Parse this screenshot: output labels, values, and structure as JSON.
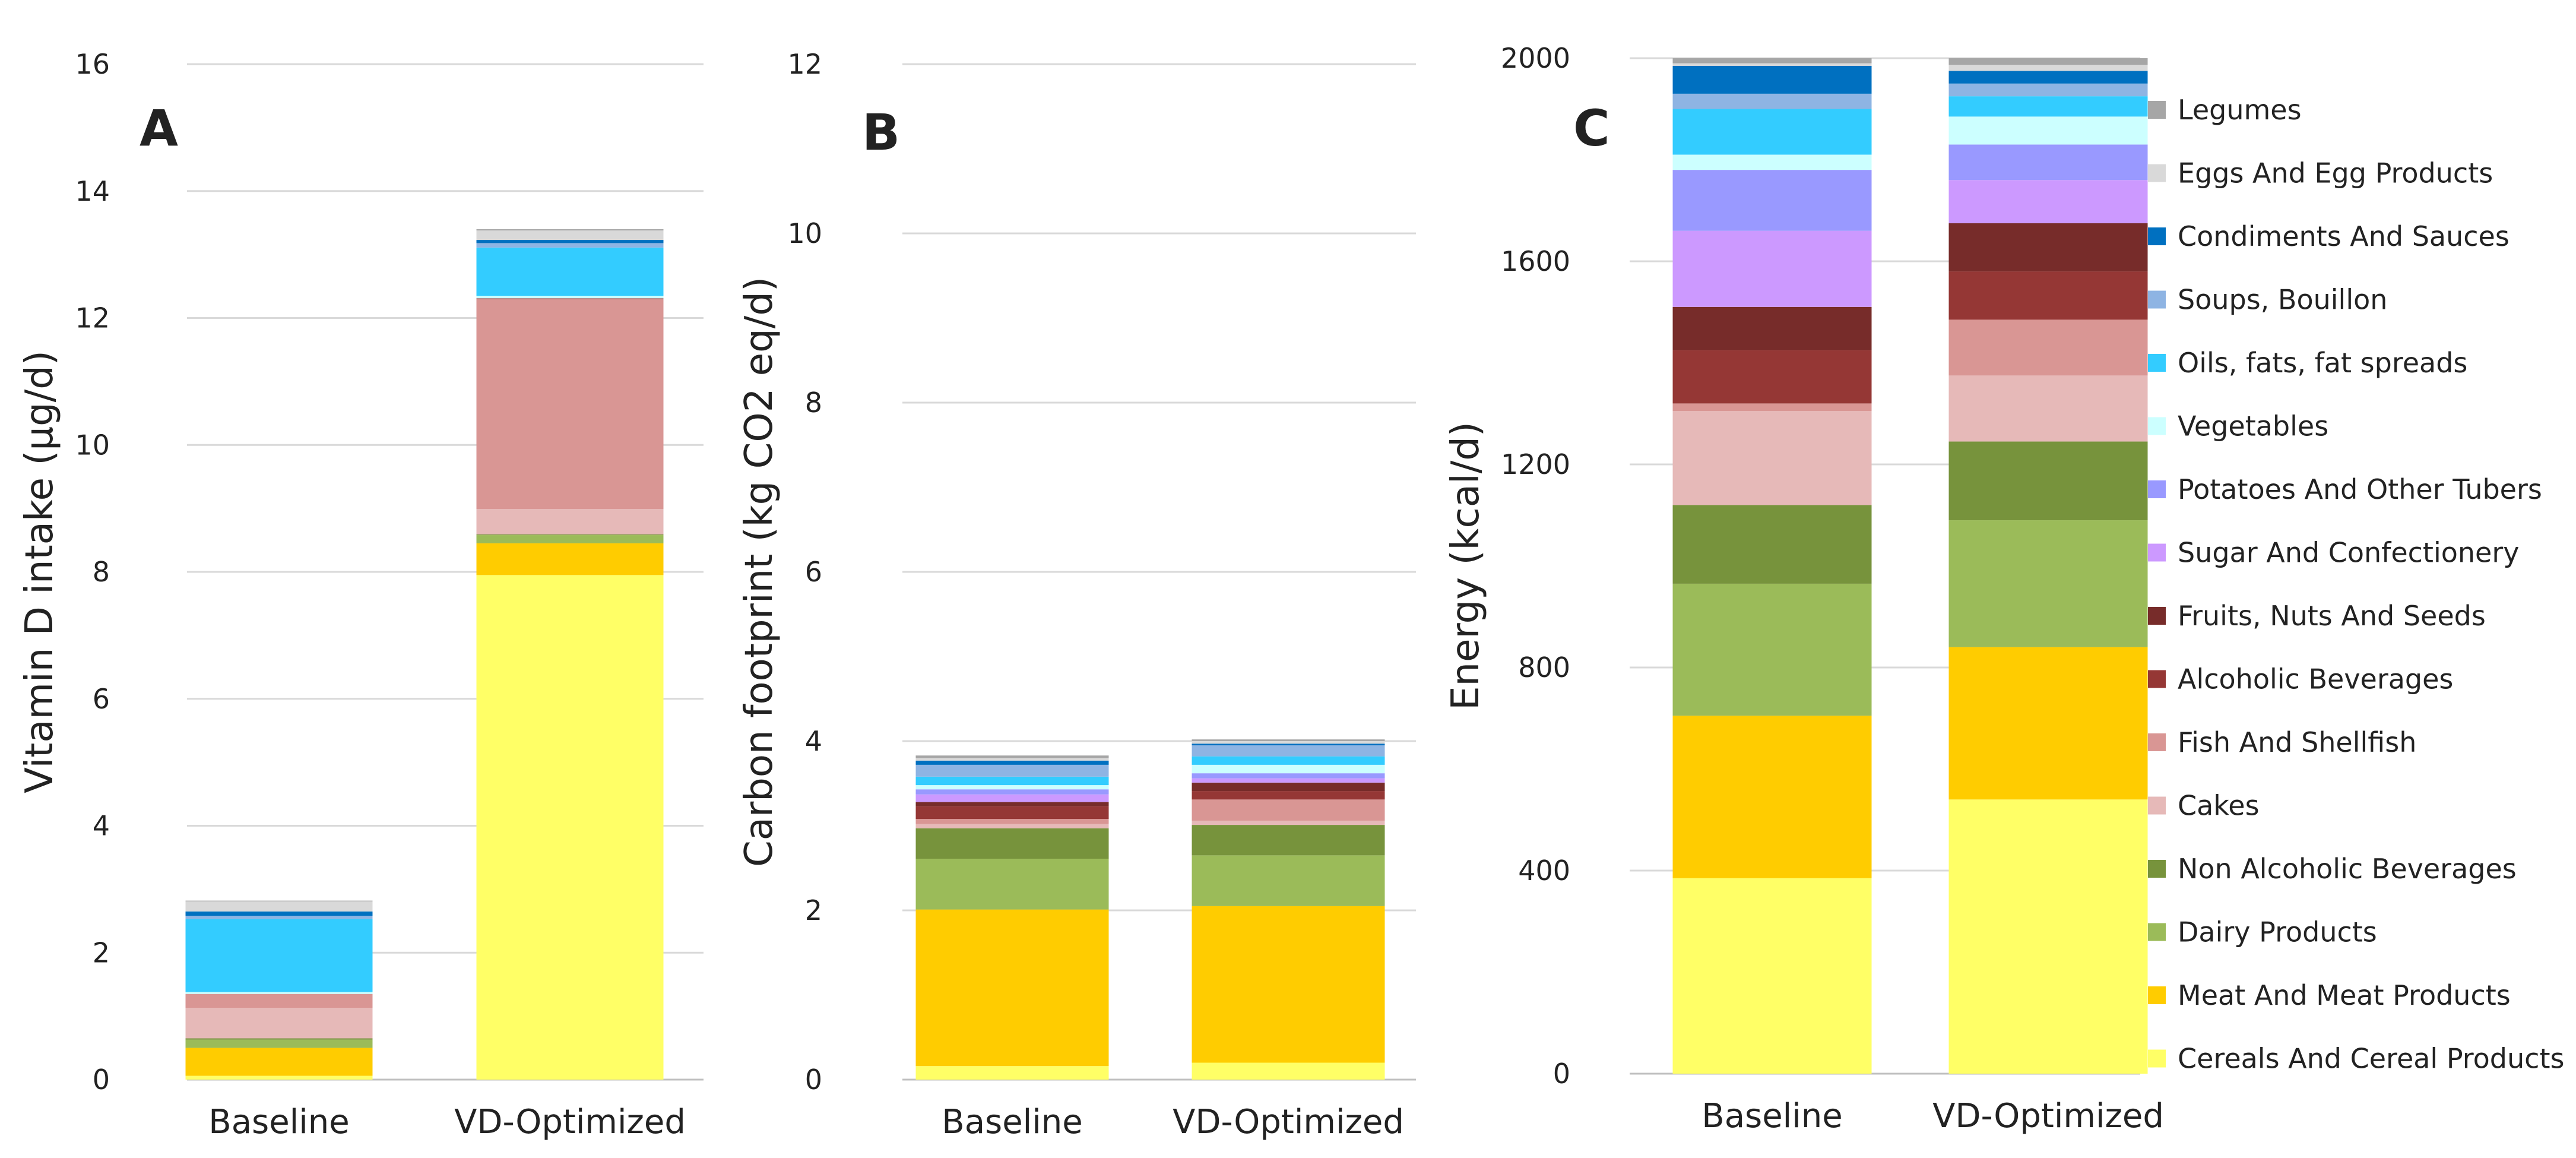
{
  "categories": [
    {
      "name": "Cereals And Cereal Products",
      "color": "#FFFF66"
    },
    {
      "name": "Meat And Meat Products",
      "color": "#FFCC00"
    },
    {
      "name": "Dairy Products",
      "color": "#9BBB59"
    },
    {
      "name": "Non Alcoholic Beverages",
      "color": "#77933C"
    },
    {
      "name": "Cakes",
      "color": "#E6B9B8"
    },
    {
      "name": "Fish And Shellfish",
      "color": "#D99694"
    },
    {
      "name": "Alcoholic Beverages",
      "color": "#953735"
    },
    {
      "name": "Fruits, Nuts And Seeds",
      "color": "#772C2A"
    },
    {
      "name": "Sugar And Confectionery",
      "color": "#CC99FF"
    },
    {
      "name": "Potatoes And Other Tubers",
      "color": "#9999FF"
    },
    {
      "name": "Vegetables",
      "color": "#CCFFFF"
    },
    {
      "name": "Oils, fats, fat spreads",
      "color": "#33CCFF"
    },
    {
      "name": "Soups, Bouillon",
      "color": "#8EB4E3"
    },
    {
      "name": "Condiments And Sauces",
      "color": "#0070C0"
    },
    {
      "name": "Eggs And Egg Products",
      "color": "#D9D9D9"
    },
    {
      "name": "Legumes",
      "color": "#A6A6A6"
    }
  ],
  "chart_data": [
    {
      "type": "bar",
      "stacked": true,
      "panel": "A",
      "ylabel": "Vitamin D intake (µg/d)",
      "ylim": [
        0,
        16
      ],
      "yticks": [
        0,
        2,
        4,
        6,
        8,
        10,
        12,
        14,
        16
      ],
      "x": [
        "Baseline",
        "VD-Optimized"
      ],
      "series_values": {
        "Baseline": [
          0.06,
          0.44,
          0.13,
          0.02,
          0.48,
          0.22,
          0.0,
          0.0,
          0.0,
          0.0,
          0.03,
          1.15,
          0.05,
          0.07,
          0.16,
          0.01
        ],
        "VD-Optimized": [
          7.95,
          0.5,
          0.13,
          0.01,
          0.4,
          3.31,
          0.01,
          0.0,
          0.0,
          0.0,
          0.04,
          0.76,
          0.07,
          0.05,
          0.15,
          0.02
        ]
      }
    },
    {
      "type": "bar",
      "stacked": true,
      "panel": "B",
      "ylabel": "Carbon footprint (kg CO2 eq/d)",
      "ylim": [
        0,
        12
      ],
      "yticks": [
        0,
        2,
        4,
        6,
        8,
        10,
        12
      ],
      "x": [
        "Baseline",
        "VD-Optimized"
      ],
      "series_values": {
        "Baseline": [
          0.16,
          1.85,
          0.6,
          0.36,
          0.05,
          0.06,
          0.15,
          0.05,
          0.09,
          0.06,
          0.05,
          0.1,
          0.14,
          0.05,
          0.03,
          0.03
        ],
        "VD-Optimized": [
          0.2,
          1.85,
          0.6,
          0.36,
          0.05,
          0.25,
          0.1,
          0.1,
          0.05,
          0.06,
          0.1,
          0.1,
          0.13,
          0.02,
          0.03,
          0.02
        ]
      }
    },
    {
      "type": "bar",
      "stacked": true,
      "panel": "C",
      "ylabel": "Energy (kcal/d)",
      "ylim": [
        0,
        2000
      ],
      "yticks": [
        0,
        400,
        800,
        1200,
        1600,
        2000
      ],
      "x": [
        "Baseline",
        "VD-Optimized"
      ],
      "series_values": {
        "Baseline": [
          385,
          320,
          260,
          155,
          185,
          15,
          105,
          85,
          150,
          120,
          30,
          90,
          30,
          55,
          5,
          10
        ],
        "VD-Optimized": [
          540,
          300,
          250,
          155,
          130,
          110,
          95,
          95,
          85,
          70,
          55,
          40,
          25,
          25,
          12,
          13
        ]
      }
    }
  ]
}
